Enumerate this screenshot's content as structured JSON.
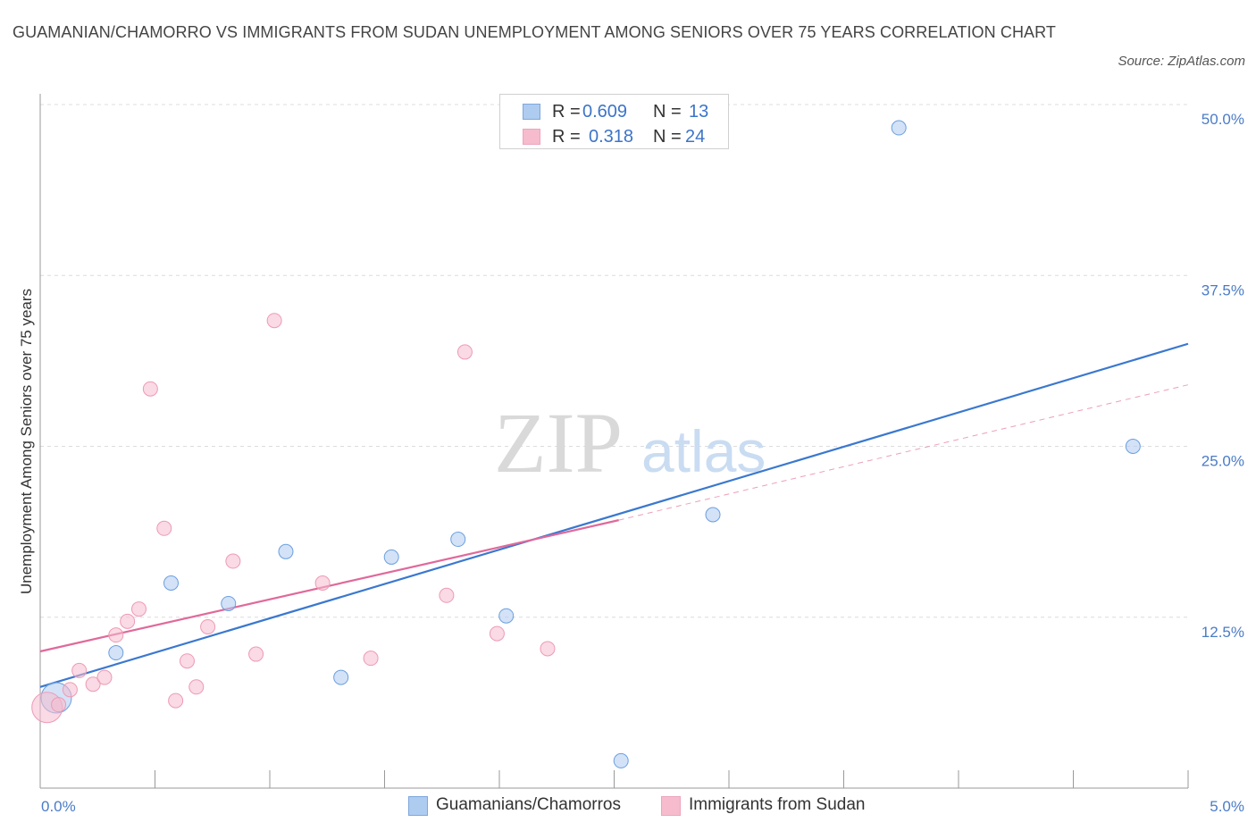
{
  "header": {
    "title": "GUAMANIAN/CHAMORRO VS IMMIGRANTS FROM SUDAN UNEMPLOYMENT AMONG SENIORS OVER 75 YEARS CORRELATION CHART",
    "source": "Source: ZipAtlas.com"
  },
  "watermark": {
    "zip": "ZIP",
    "atlas": "atlas"
  },
  "stats": {
    "rows": [
      {
        "r_label": "R =",
        "r_value": "0.609",
        "n_label": "N =",
        "n_value": "13",
        "color": "#aecbf0"
      },
      {
        "r_label": "R =",
        "r_value": "0.318",
        "n_label": "N =",
        "n_value": "24",
        "color": "#f6bccd"
      }
    ]
  },
  "legend": {
    "items": [
      {
        "label": "Guamanians/Chamorros",
        "color": "#aecbf0"
      },
      {
        "label": "Immigrants from Sudan",
        "color": "#f6bccd"
      }
    ]
  },
  "chart_data": {
    "type": "scatter",
    "title": "GUAMANIAN/CHAMORRO VS IMMIGRANTS FROM SUDAN UNEMPLOYMENT AMONG SENIORS OVER 75 YEARS CORRELATION CHART",
    "xlabel": "",
    "ylabel": "Unemployment Among Seniors over 75 years",
    "xlim": [
      0,
      5
    ],
    "ylim": [
      0,
      50
    ],
    "x_ticks": [
      {
        "value": 0,
        "label": "0.0%"
      },
      {
        "value": 5,
        "label": "5.0%"
      }
    ],
    "y_ticks": [
      {
        "value": 12.5,
        "label": "12.5%"
      },
      {
        "value": 25,
        "label": "25.0%"
      },
      {
        "value": 37.5,
        "label": "37.5%"
      },
      {
        "value": 50,
        "label": "50.0%"
      }
    ],
    "grid": true,
    "legend_position": "bottom-center",
    "series": [
      {
        "name": "Guamanians/Chamorros",
        "color": "#6a9fe0",
        "fill": "#aecbf0",
        "trend": {
          "x": [
            0,
            5
          ],
          "y": [
            7.4,
            32.5
          ],
          "style": "solid",
          "color": "#3a78cf"
        },
        "points": [
          {
            "x": 0.07,
            "y": 6.6,
            "large": true
          },
          {
            "x": 0.33,
            "y": 9.9
          },
          {
            "x": 0.57,
            "y": 15.0
          },
          {
            "x": 0.82,
            "y": 13.5
          },
          {
            "x": 1.07,
            "y": 17.3
          },
          {
            "x": 1.31,
            "y": 8.1
          },
          {
            "x": 1.53,
            "y": 16.9
          },
          {
            "x": 1.82,
            "y": 18.2
          },
          {
            "x": 2.03,
            "y": 12.6
          },
          {
            "x": 2.53,
            "y": 2.0
          },
          {
            "x": 2.93,
            "y": 20.0
          },
          {
            "x": 3.74,
            "y": 48.3
          },
          {
            "x": 4.76,
            "y": 25.0
          }
        ]
      },
      {
        "name": "Immigrants from Sudan",
        "color": "#ee9ab4",
        "fill": "#f6bccd",
        "trend": {
          "x": [
            0,
            2.52
          ],
          "y": [
            10.0,
            19.6
          ],
          "style": "solid",
          "color": "#e0699a"
        },
        "trend_extension": {
          "x": [
            2.52,
            5
          ],
          "y": [
            19.6,
            29.5
          ],
          "style": "dashed",
          "color": "#ec9fb8"
        },
        "points": [
          {
            "x": 0.03,
            "y": 5.9,
            "large": true
          },
          {
            "x": 0.08,
            "y": 6.1
          },
          {
            "x": 0.13,
            "y": 7.2
          },
          {
            "x": 0.17,
            "y": 8.6
          },
          {
            "x": 0.23,
            "y": 7.6
          },
          {
            "x": 0.28,
            "y": 8.1
          },
          {
            "x": 0.33,
            "y": 11.2
          },
          {
            "x": 0.38,
            "y": 12.2
          },
          {
            "x": 0.43,
            "y": 13.1
          },
          {
            "x": 0.48,
            "y": 29.2
          },
          {
            "x": 0.54,
            "y": 19.0
          },
          {
            "x": 0.59,
            "y": 6.4
          },
          {
            "x": 0.64,
            "y": 9.3
          },
          {
            "x": 0.68,
            "y": 7.4
          },
          {
            "x": 0.73,
            "y": 11.8
          },
          {
            "x": 0.84,
            "y": 16.6
          },
          {
            "x": 0.94,
            "y": 9.8
          },
          {
            "x": 1.02,
            "y": 34.2
          },
          {
            "x": 1.23,
            "y": 15.0
          },
          {
            "x": 1.44,
            "y": 9.5
          },
          {
            "x": 1.77,
            "y": 14.1
          },
          {
            "x": 1.85,
            "y": 31.9
          },
          {
            "x": 1.99,
            "y": 11.3
          },
          {
            "x": 2.21,
            "y": 10.2
          }
        ]
      }
    ]
  }
}
